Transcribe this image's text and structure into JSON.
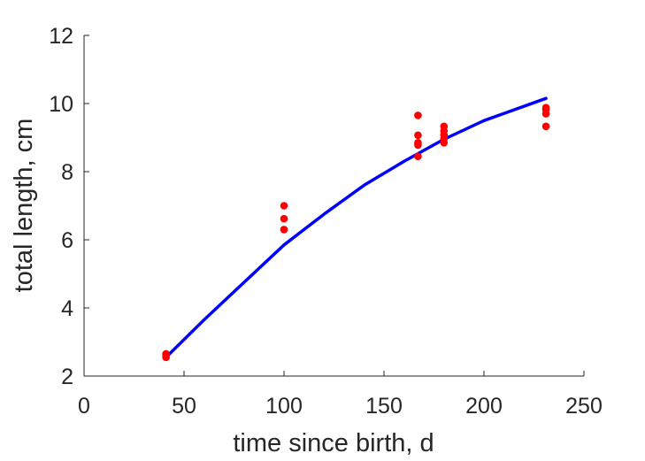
{
  "chart_data": {
    "type": "scatter",
    "xlabel": "time since birth, d",
    "ylabel": "total length, cm",
    "xlim": [
      0,
      250
    ],
    "ylim": [
      2,
      12
    ],
    "xticks": [
      "0",
      "50",
      "100",
      "150",
      "200",
      "250"
    ],
    "yticks": [
      "2",
      "4",
      "6",
      "8",
      "10",
      "12"
    ],
    "grid": false,
    "series": [
      {
        "type": "scatter",
        "color": "#ff0000",
        "points": [
          [
            41,
            2.65
          ],
          [
            41,
            2.6
          ],
          [
            41,
            2.55
          ],
          [
            100,
            7.0
          ],
          [
            100,
            6.62
          ],
          [
            100,
            6.3
          ],
          [
            167,
            9.65
          ],
          [
            167,
            9.07
          ],
          [
            167,
            8.85
          ],
          [
            167,
            8.78
          ],
          [
            167,
            8.45
          ],
          [
            180,
            9.33
          ],
          [
            180,
            9.2
          ],
          [
            180,
            9.08
          ],
          [
            180,
            8.97
          ],
          [
            180,
            8.85
          ],
          [
            231,
            9.88
          ],
          [
            231,
            9.82
          ],
          [
            231,
            9.7
          ],
          [
            231,
            9.33
          ]
        ]
      },
      {
        "type": "line",
        "color": "#0000ff",
        "points": [
          [
            41,
            2.55
          ],
          [
            60,
            3.65
          ],
          [
            80,
            4.75
          ],
          [
            100,
            5.85
          ],
          [
            120,
            6.75
          ],
          [
            140,
            7.6
          ],
          [
            160,
            8.3
          ],
          [
            180,
            8.95
          ],
          [
            200,
            9.5
          ],
          [
            231,
            10.15
          ]
        ]
      }
    ]
  }
}
